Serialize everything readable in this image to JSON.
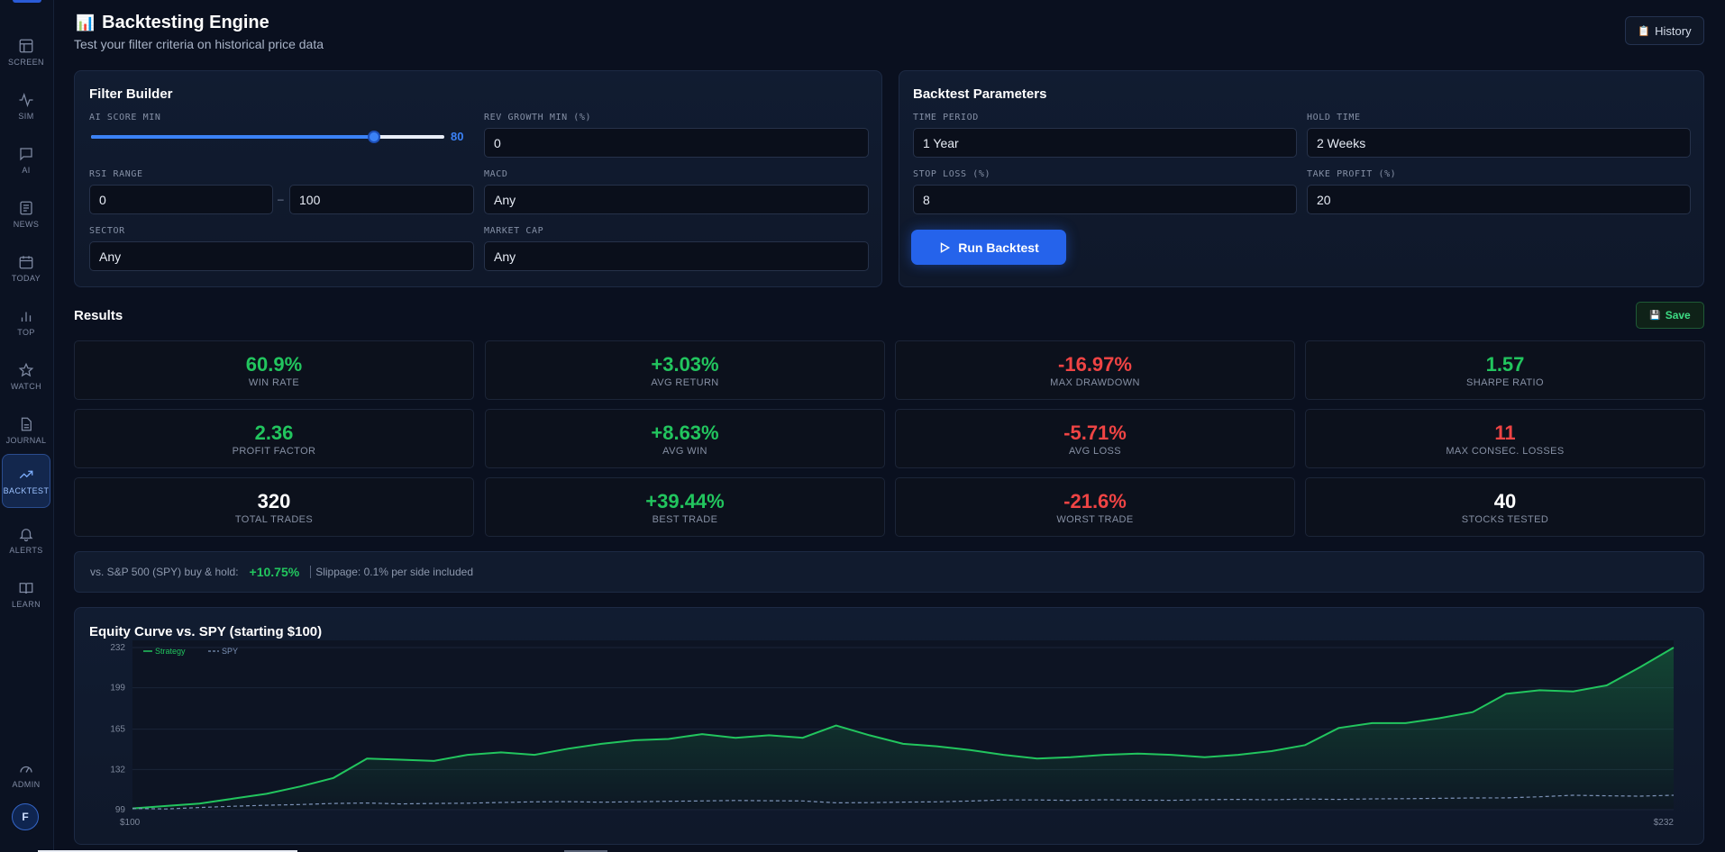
{
  "sidebar": {
    "items": [
      {
        "label": "SCREEN",
        "icon": "layout-icon"
      },
      {
        "label": "SIM",
        "icon": "pulse-icon"
      },
      {
        "label": "AI",
        "icon": "chat-icon"
      },
      {
        "label": "NEWS",
        "icon": "newspaper-icon"
      },
      {
        "label": "TODAY",
        "icon": "calendar-icon"
      },
      {
        "label": "TOP",
        "icon": "bar-chart-icon"
      },
      {
        "label": "WATCH",
        "icon": "star-icon"
      },
      {
        "label": "JOURNAL",
        "icon": "document-icon"
      },
      {
        "label": "BACKTEST",
        "icon": "trending-up-icon"
      },
      {
        "label": "ALERTS",
        "icon": "bell-icon"
      },
      {
        "label": "LEARN",
        "icon": "book-icon"
      },
      {
        "label": "ADMIN",
        "icon": "gauge-icon"
      }
    ],
    "active": "BACKTEST",
    "avatar_initial": "F"
  },
  "header": {
    "title_icon": "📊",
    "title": "Backtesting Engine",
    "subtitle": "Test your filter criteria on historical price data",
    "history_icon": "📋",
    "history_label": "History"
  },
  "filter_builder": {
    "title": "Filter Builder",
    "ai_score_label": "AI SCORE MIN",
    "ai_score_value": "80",
    "ai_score_fraction": 0.8,
    "rev_growth_label": "REV GROWTH MIN (%)",
    "rev_growth_value": "0",
    "rsi_label": "RSI RANGE",
    "rsi_min": "0",
    "rsi_dash": "–",
    "rsi_max": "100",
    "macd_label": "MACD",
    "macd_value": "Any",
    "sector_label": "SECTOR",
    "sector_value": "Any",
    "market_cap_label": "MARKET CAP",
    "market_cap_value": "Any"
  },
  "params": {
    "title": "Backtest Parameters",
    "time_period_label": "TIME PERIOD",
    "time_period_value": "1 Year",
    "hold_time_label": "HOLD TIME",
    "hold_time_value": "2 Weeks",
    "stop_loss_label": "STOP LOSS (%)",
    "stop_loss_value": "8",
    "take_profit_label": "TAKE PROFIT (%)",
    "take_profit_value": "20",
    "run_label": "Run Backtest"
  },
  "results": {
    "title": "Results",
    "save_icon": "💾",
    "save_label": "Save",
    "stats": [
      {
        "value": "60.9%",
        "label": "WIN RATE",
        "tone": "green"
      },
      {
        "value": "+3.03%",
        "label": "AVG RETURN",
        "tone": "green"
      },
      {
        "value": "-16.97%",
        "label": "MAX DRAWDOWN",
        "tone": "red"
      },
      {
        "value": "1.57",
        "label": "SHARPE RATIO",
        "tone": "green"
      },
      {
        "value": "2.36",
        "label": "PROFIT FACTOR",
        "tone": "green"
      },
      {
        "value": "+8.63%",
        "label": "AVG WIN",
        "tone": "green"
      },
      {
        "value": "-5.71%",
        "label": "AVG LOSS",
        "tone": "red"
      },
      {
        "value": "11",
        "label": "MAX CONSEC. LOSSES",
        "tone": "red"
      },
      {
        "value": "320",
        "label": "TOTAL TRADES",
        "tone": "white"
      },
      {
        "value": "+39.44%",
        "label": "BEST TRADE",
        "tone": "green"
      },
      {
        "value": "-21.6%",
        "label": "WORST TRADE",
        "tone": "red"
      },
      {
        "value": "40",
        "label": "STOCKS TESTED",
        "tone": "white"
      }
    ],
    "spy_label": "vs. S&P 500 (SPY) buy & hold:",
    "spy_value": "+10.75%",
    "slippage_note": "Slippage: 0.1% per side included"
  },
  "chart_data": {
    "type": "line",
    "title": "Equity Curve vs. SPY (starting $100)",
    "y_ticks": [
      "232",
      "199",
      "165",
      "132",
      "99"
    ],
    "ylim": [
      99,
      232
    ],
    "x_start_label": "$100",
    "x_end_label": "$232",
    "grid": true,
    "legend": "top-left",
    "series": [
      {
        "name": "Strategy",
        "color": "#22c55e",
        "values": [
          100,
          102,
          104,
          108,
          112,
          118,
          125,
          141,
          140,
          139,
          144,
          146,
          144,
          149,
          153,
          156,
          157,
          161,
          158,
          160,
          158,
          168,
          160,
          153,
          151,
          148,
          144,
          141,
          142,
          144,
          145,
          144,
          142,
          144,
          147,
          152,
          166,
          170,
          170,
          174,
          179,
          194,
          197,
          196,
          201,
          216,
          232
        ]
      },
      {
        "name": "SPY",
        "color": "#7d93b8",
        "values": [
          100,
          99.6,
          100.8,
          101.8,
          102.6,
          103.2,
          104.1,
          104.5,
          103.7,
          104.1,
          104.3,
          104.9,
          105.4,
          105.6,
          105.1,
          105.5,
          105.9,
          106.2,
          106.5,
          106.3,
          106.2,
          104.6,
          104.8,
          105.2,
          105.4,
          106.1,
          107.0,
          107.0,
          106.6,
          107.1,
          106.8,
          106.7,
          107.2,
          107.4,
          107.1,
          107.7,
          107.4,
          107.9,
          108.0,
          108.3,
          108.6,
          108.7,
          109.6,
          110.8,
          110.4,
          110.1,
          110.8
        ]
      }
    ]
  }
}
